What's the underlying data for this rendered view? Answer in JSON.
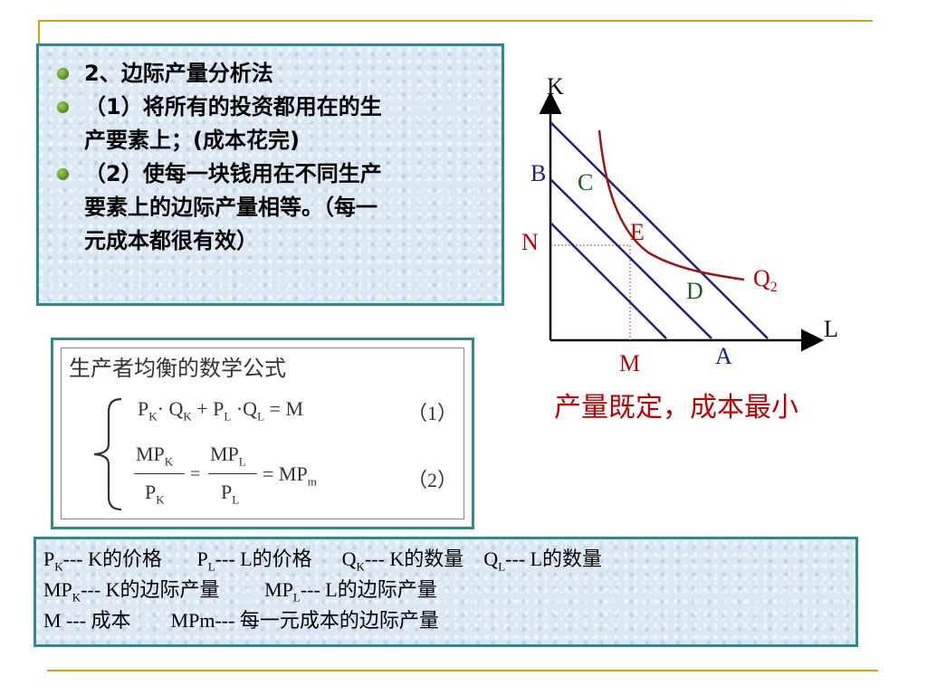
{
  "bullets": [
    {
      "line1": "2、边际产量分析法"
    },
    {
      "line1": "（1）将所有的投资都用在的生",
      "line2": "产要素上；(成本花完)"
    },
    {
      "line1": "（2）使每一块钱用在不同生产",
      "line2": "要素上的边际产量相等。（每一",
      "line3": "元成本都很有效）"
    }
  ],
  "formula": {
    "title": "生产者均衡的数学公式",
    "eq1": {
      "p_k": "P",
      "sub_k": "K",
      "dot_q_k": "· Q",
      "sub_k2": "K",
      "plus_p_l": " + P",
      "sub_l": "L",
      "dot_q_l": " ·Q",
      "sub_l2": "L",
      "equals_m": "  =  M",
      "num": "（1）"
    },
    "eq2": {
      "mp": "MP",
      "sub_k": "K",
      "p": "P",
      "sub_l": "L",
      "eq": "=",
      "rhs": "= MP",
      "sub_m": "m",
      "num": "（2）"
    }
  },
  "diagram": {
    "axis_k": "K",
    "axis_l": "L",
    "label_b": "B",
    "label_c": "C",
    "label_n": "N",
    "label_e": "E",
    "label_d": "D",
    "label_q": "Q",
    "label_q_sub": "2",
    "label_m": "M",
    "label_a": "A"
  },
  "caption": "产量既定，成本最小",
  "defs": {
    "line1": {
      "a": "P",
      "a_sub": "K",
      "a_text": "---  K的价格",
      "b": "P",
      "b_sub": "L",
      "b_text": "---  L的价格",
      "c": "Q",
      "c_sub": "K",
      "c_text": "--- K的数量",
      "d": "Q",
      "d_sub": "L",
      "d_text": "--- L的数量"
    },
    "line2": {
      "a": "MP",
      "a_sub": "K",
      "a_text": "--- K的边际产量",
      "b": "MP",
      "b_sub": "L",
      "b_text": "--- L的边际产量"
    },
    "line3": {
      "a": "M ---  成本",
      "b": "MPm--- 每一元成本的边际产量"
    }
  },
  "colors": {
    "accent_rule": "#d4a017",
    "frame": "#2e8b8b",
    "budget_line": "#1a237e",
    "isoquant": "#a11212",
    "caption": "#c00000"
  }
}
